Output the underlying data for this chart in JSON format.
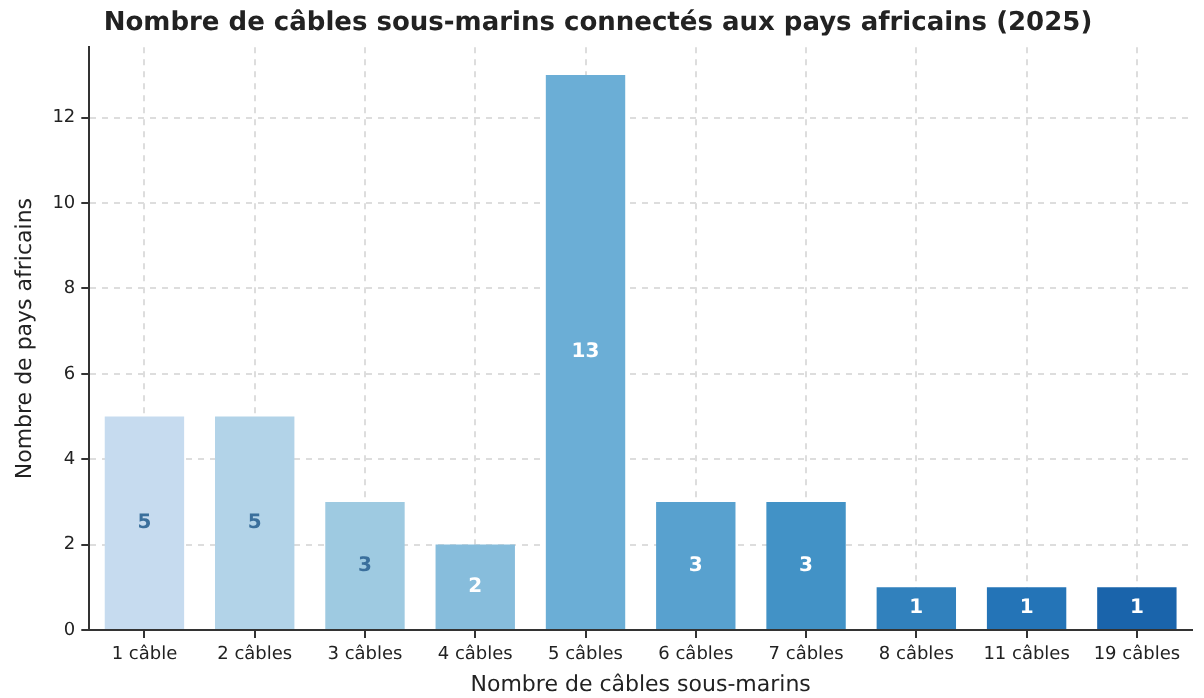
{
  "chart_data": {
    "type": "bar",
    "title": "Nombre de câbles sous-marins connectés aux pays africains (2025)",
    "xlabel": "Nombre de câbles sous-marins",
    "ylabel": "Nombre de pays africains",
    "categories": [
      "1 câble",
      "2 câbles",
      "3 câbles",
      "4 câbles",
      "5 câbles",
      "6 câbles",
      "7 câbles",
      "8 câbles",
      "11 câbles",
      "19 câbles"
    ],
    "values": [
      5,
      5,
      3,
      2,
      13,
      3,
      3,
      1,
      1,
      1
    ],
    "colors": [
      "#c6dbef",
      "#b2d3e8",
      "#9ecae1",
      "#87bddc",
      "#6baed6",
      "#58a1cf",
      "#4292c6",
      "#3181bd",
      "#2474b7",
      "#1a64ab"
    ],
    "ylim": [
      0,
      13.65
    ],
    "yticks": [
      0,
      2,
      4,
      6,
      8,
      10,
      12
    ],
    "grid": true,
    "data_labels": true
  }
}
